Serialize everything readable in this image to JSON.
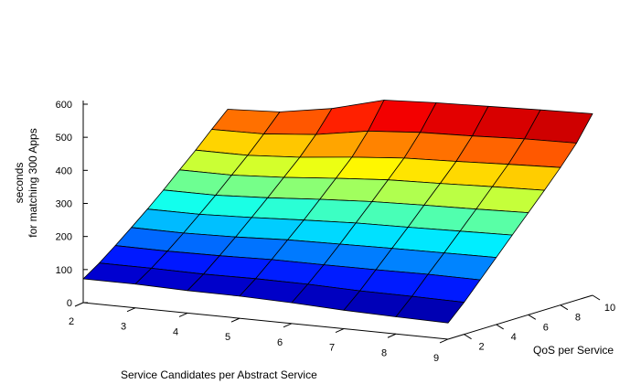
{
  "chart_data": {
    "type": "surface",
    "title": "",
    "xlabel": "Service Candidates per Abstract Service",
    "zlabel": "QoS per Service",
    "ylabel_lines": [
      "seconds",
      "for matching 300 Apps"
    ],
    "x_ticks": [
      2,
      3,
      4,
      5,
      6,
      7,
      8,
      9
    ],
    "z_ticks": [
      2,
      4,
      6,
      8,
      10
    ],
    "y_ticks": [
      0,
      100,
      200,
      300,
      400,
      500,
      600
    ],
    "ylim": [
      0,
      600
    ],
    "colormap": "jet",
    "x": [
      2,
      3,
      4,
      5,
      6,
      7,
      8,
      9
    ],
    "z": [
      1,
      2,
      3,
      4,
      5,
      6,
      7,
      8,
      9,
      10
    ],
    "values": [
      [
        72,
        72,
        68,
        67,
        63,
        56,
        52,
        49
      ],
      [
        105,
        105,
        103,
        105,
        104,
        100,
        99,
        97
      ],
      [
        143,
        142,
        144,
        148,
        148,
        149,
        151,
        150
      ],
      [
        183,
        182,
        186,
        193,
        196,
        199,
        201,
        203
      ],
      [
        224,
        224,
        230,
        238,
        245,
        248,
        252,
        256
      ],
      [
        267,
        267,
        275,
        286,
        295,
        300,
        304,
        309
      ],
      [
        313,
        313,
        322,
        335,
        346,
        351,
        357,
        362
      ],
      [
        358,
        358,
        368,
        384,
        397,
        403,
        410,
        416
      ],
      [
        406,
        408,
        422,
        448,
        460,
        465,
        472,
        475
      ],
      [
        452,
        460,
        486,
        527,
        535,
        540,
        545,
        549
      ]
    ]
  }
}
